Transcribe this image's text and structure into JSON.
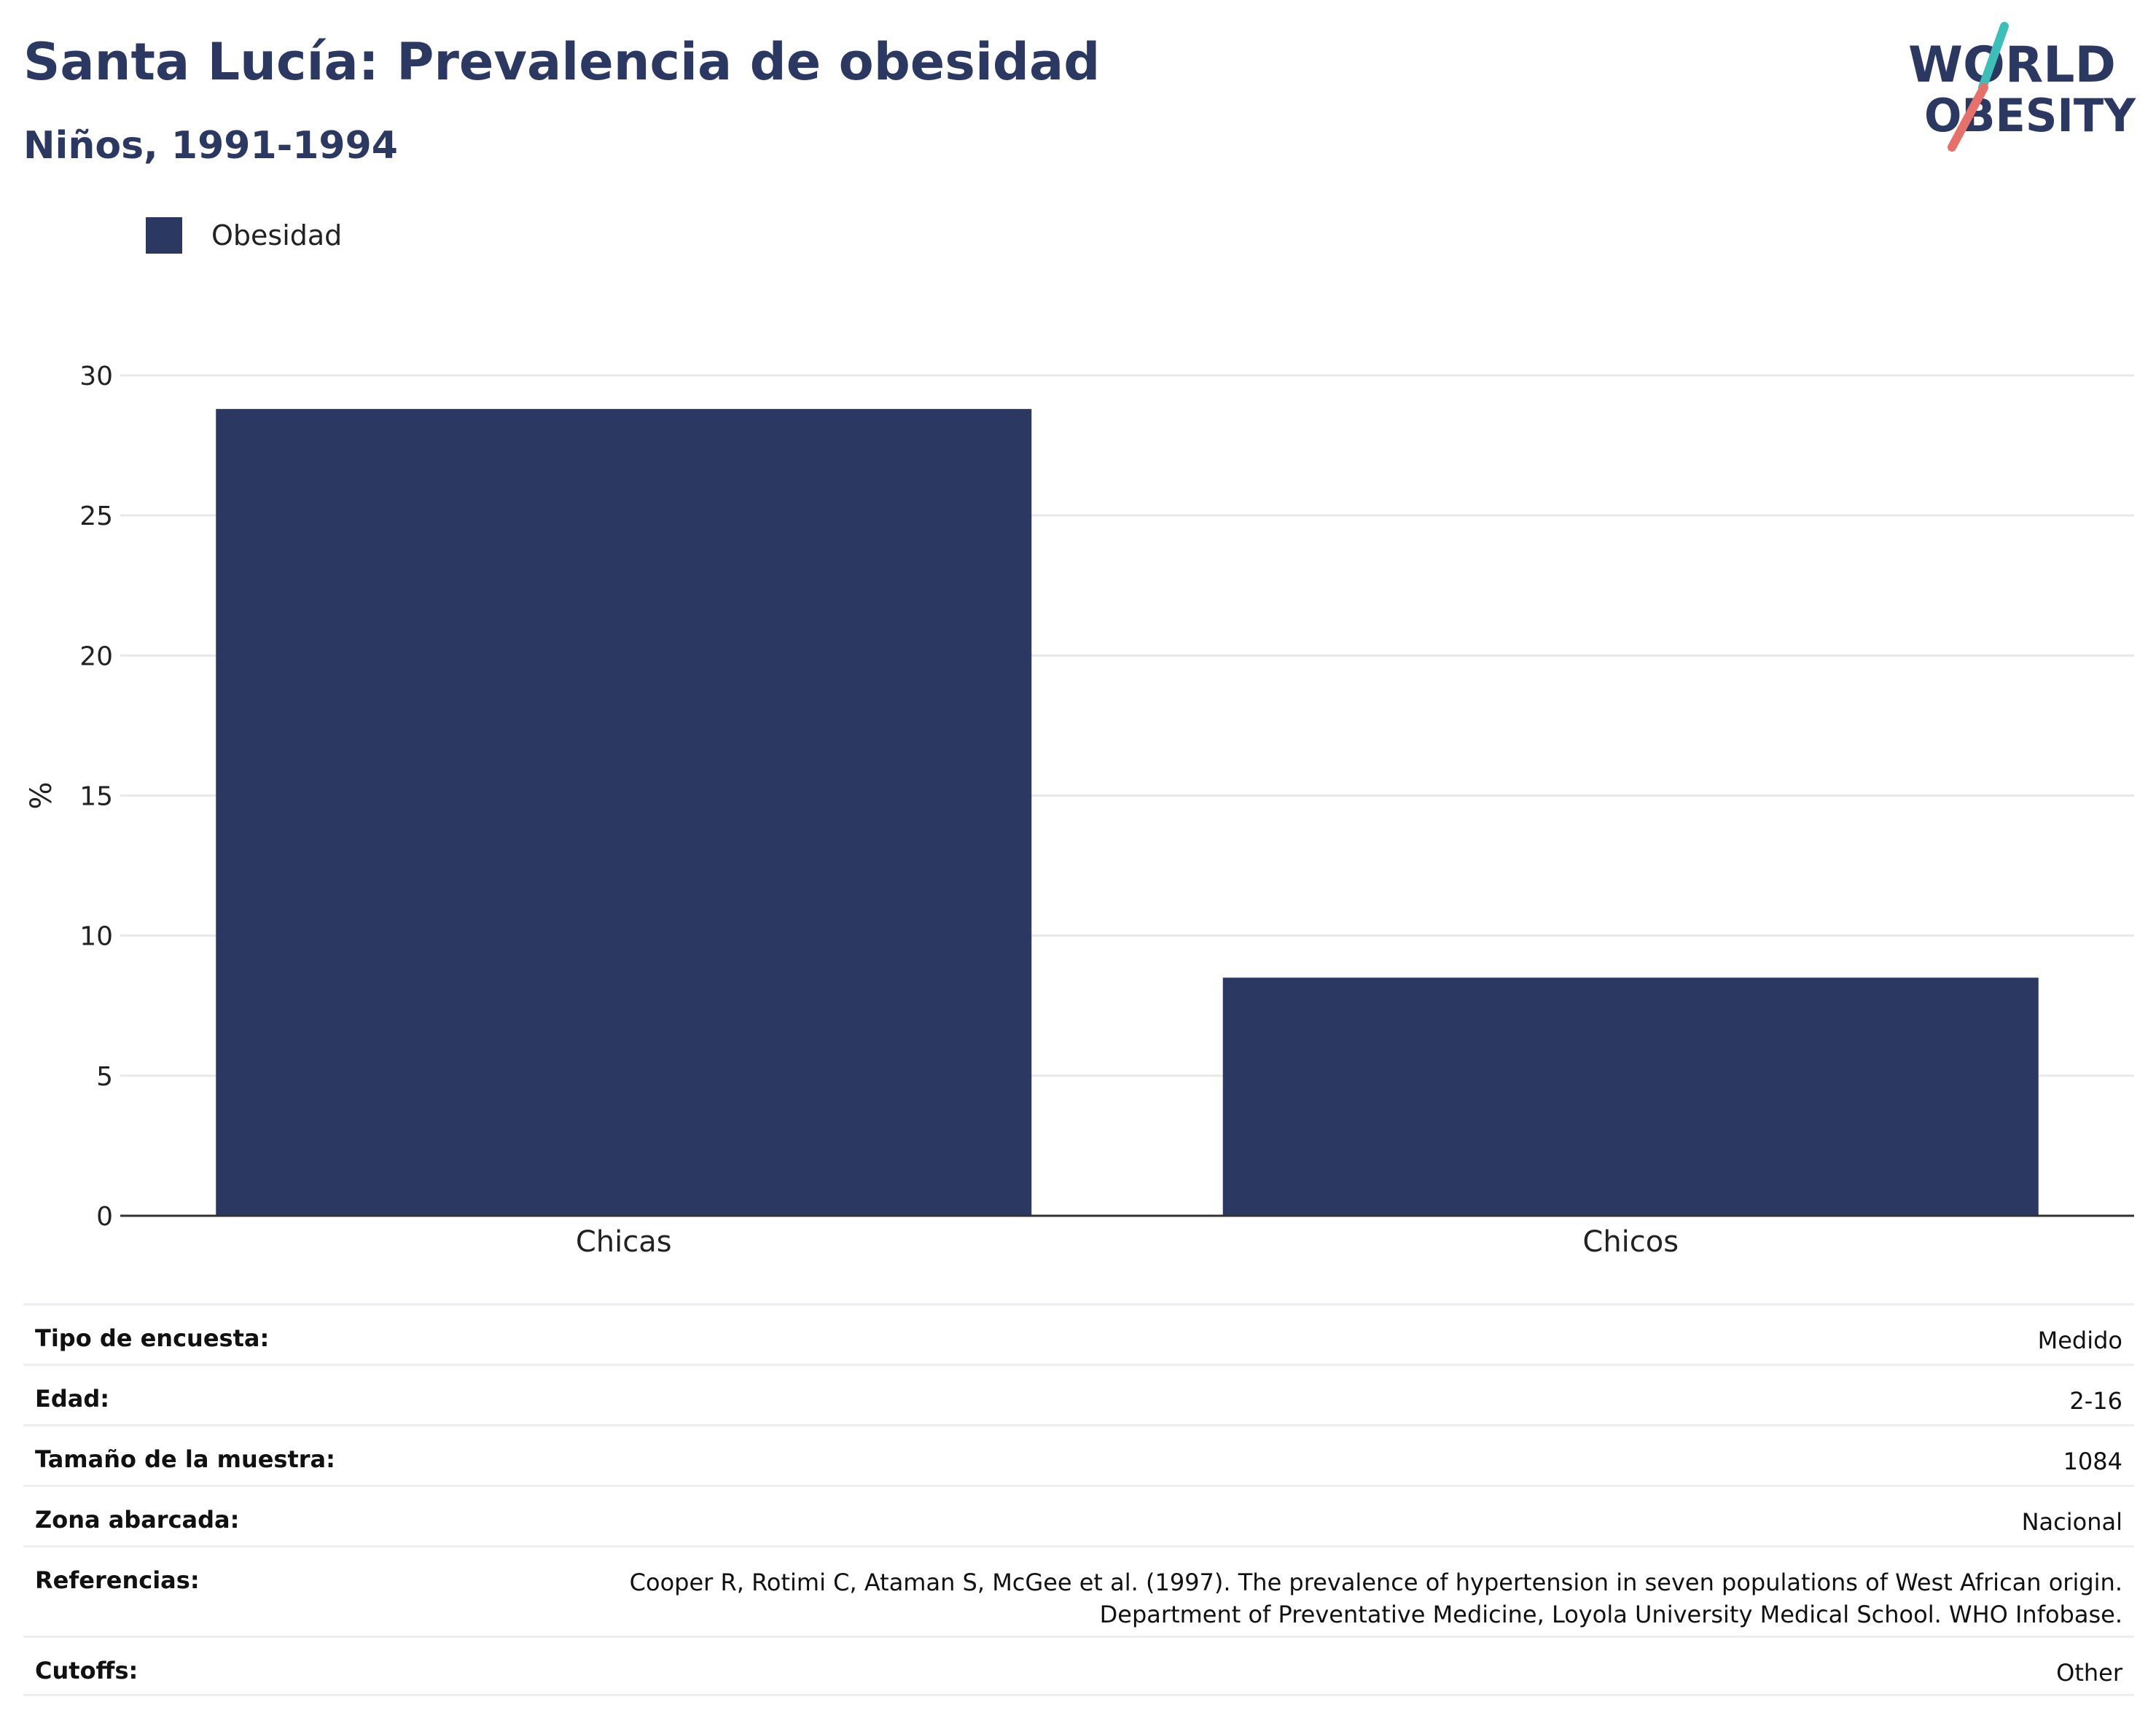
{
  "header": {
    "title": "Santa Lucía: Prevalencia de obesidad",
    "subtitle": "Niños, 1991-1994",
    "logo_line1": "WORLD",
    "logo_line2": "OBESITY"
  },
  "chart_data": {
    "type": "bar",
    "categories": [
      "Chicas",
      "Chicos"
    ],
    "series": [
      {
        "name": "Obesidad",
        "values": [
          28.8,
          8.5
        ]
      }
    ],
    "ylabel": "%",
    "xlabel": "",
    "ylim": [
      0,
      30
    ],
    "yticks": [
      0,
      5,
      10,
      15,
      20,
      25,
      30
    ],
    "grid": true,
    "legend_position": "top-left",
    "bar_color": "#2b3862"
  },
  "info": {
    "rows": [
      {
        "label": "Tipo de encuesta:",
        "value": [
          "Medido"
        ]
      },
      {
        "label": "Edad:",
        "value": [
          "2-16"
        ]
      },
      {
        "label": "Tamaño de la muestra:",
        "value": [
          "1084"
        ]
      },
      {
        "label": "Zona abarcada:",
        "value": [
          "Nacional"
        ]
      },
      {
        "label": "Referencias:",
        "value": [
          "Cooper R, Rotimi C, Ataman S, McGee et al. (1997). The prevalence of hypertension in seven populations of West African origin.",
          "Department of Preventative Medicine, Loyola University Medical School. WHO Infobase."
        ]
      },
      {
        "label": "Cutoffs:",
        "value": [
          "Other"
        ]
      }
    ]
  },
  "colors": {
    "primary": "#2b3862",
    "logo_teal": "#3bbfb8",
    "logo_coral": "#e8706a",
    "grid": "#e8e8ec"
  }
}
